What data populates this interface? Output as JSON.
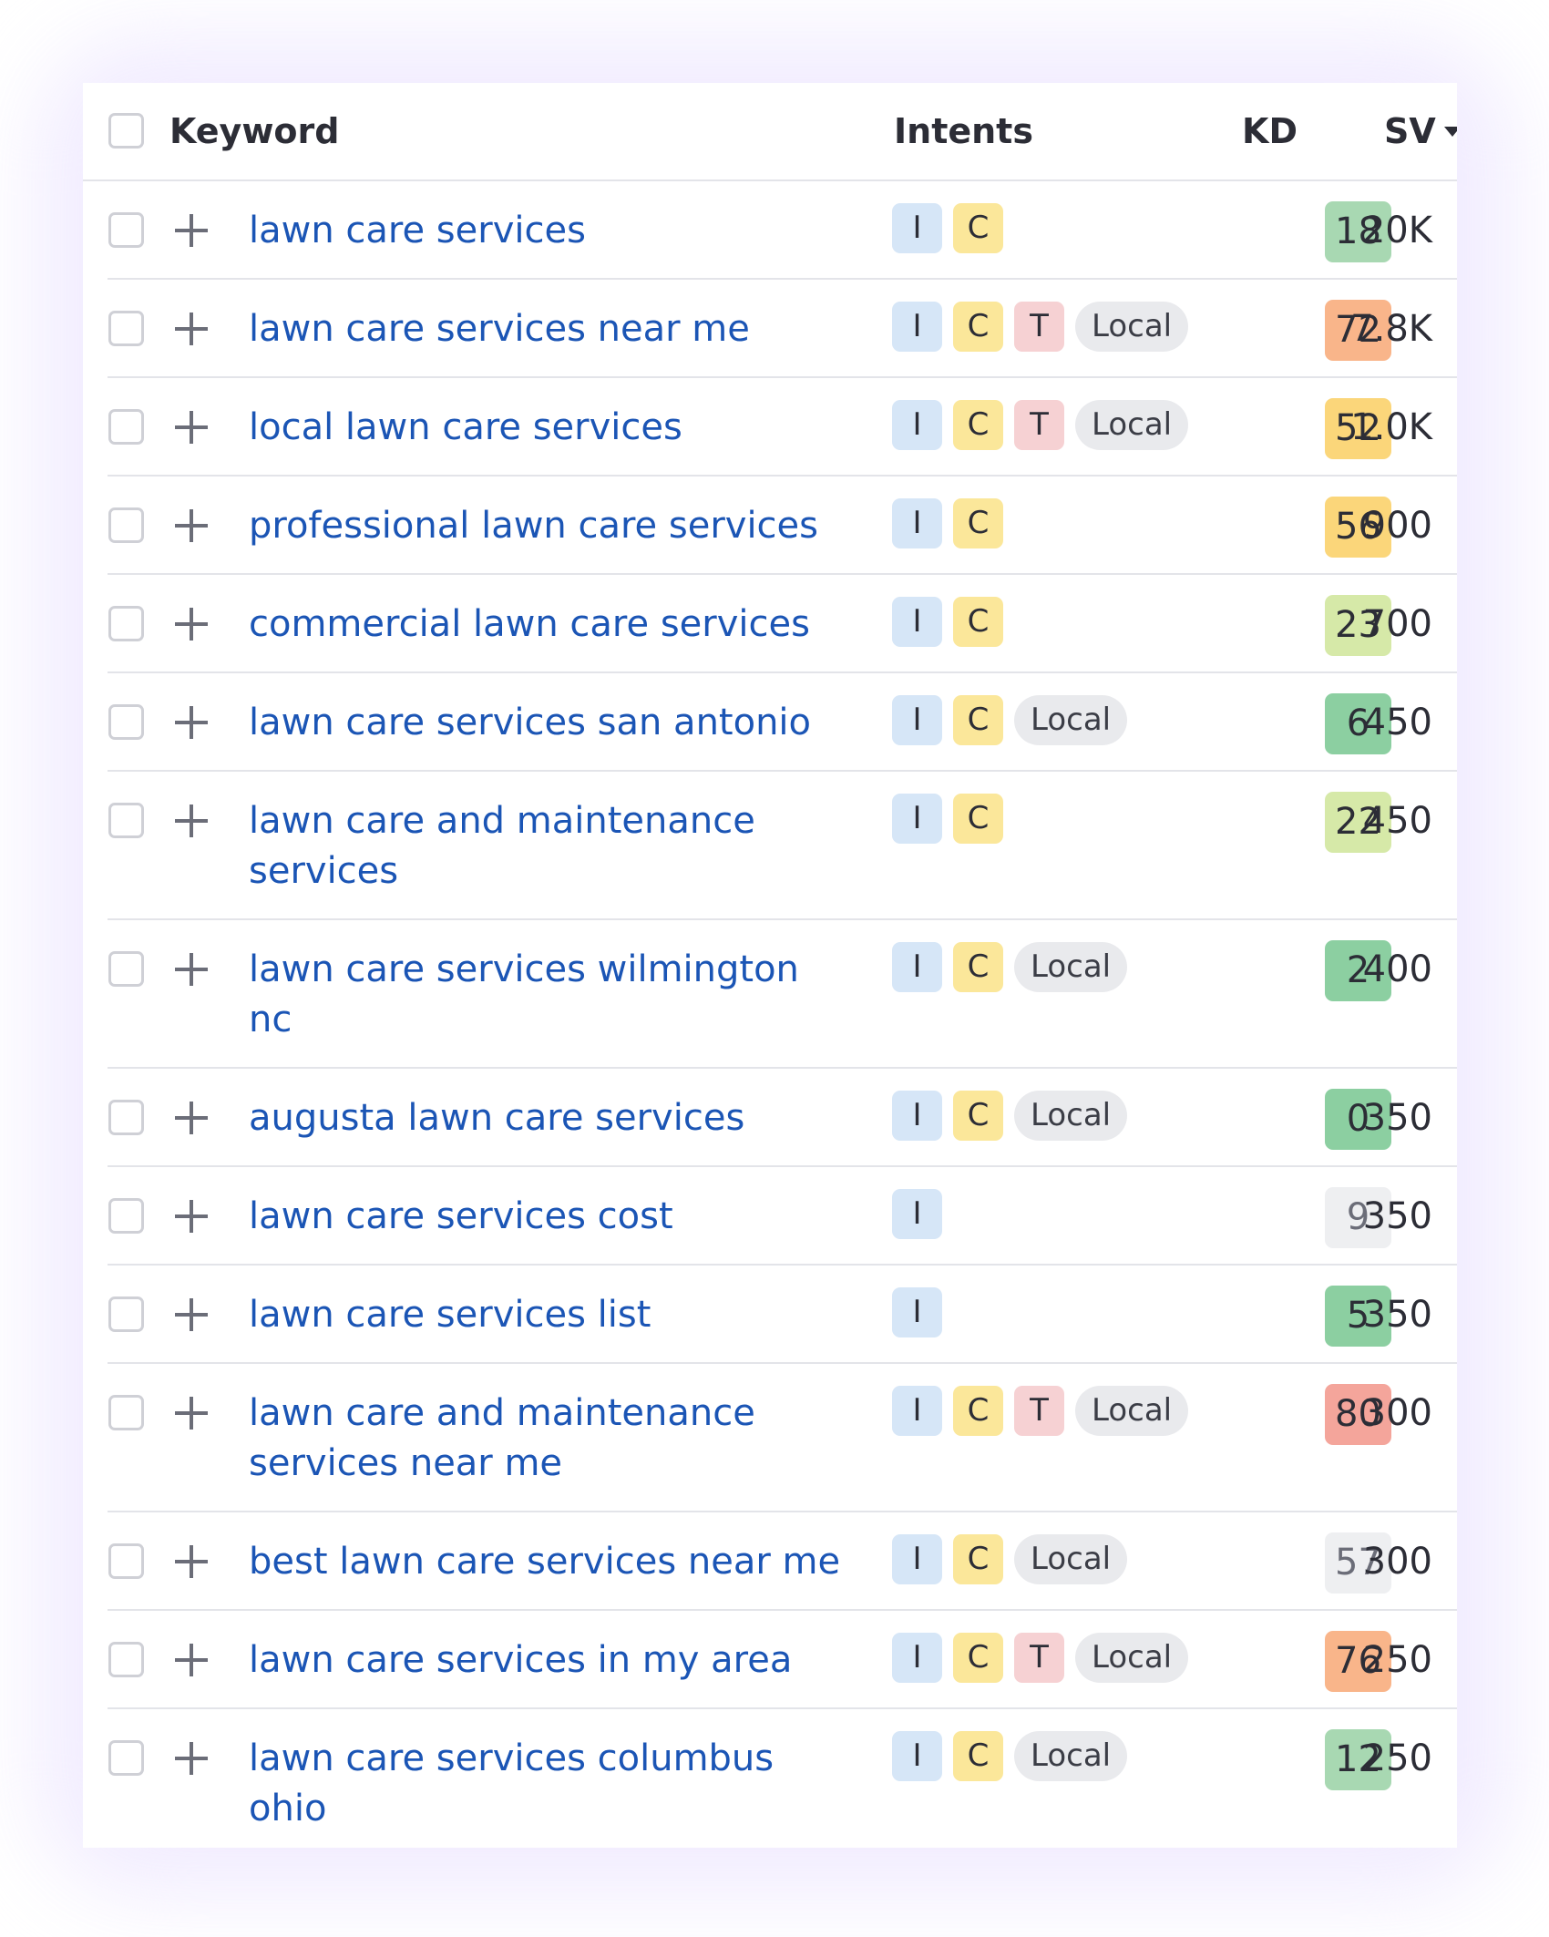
{
  "header": {
    "keyword": "Keyword",
    "intents": "Intents",
    "kd": "KD",
    "sv": "SV"
  },
  "kd_colors": {
    "dark_green": "#9bd3ab",
    "light_green": "#d6e9a8",
    "yellow": "#fbd67a",
    "orange": "#f9b58a",
    "red": "#f4a59b",
    "gray": "#eeeff1"
  },
  "rows": [
    {
      "keyword": "lawn care services",
      "intents": [
        "I",
        "C"
      ],
      "kd": "18",
      "kd_color": "#a8d8b2",
      "sv": "20K"
    },
    {
      "keyword": "lawn care services near me",
      "intents": [
        "I",
        "C",
        "T",
        "Local"
      ],
      "kd": "72",
      "kd_color": "#f9b58a",
      "sv": "7.8K"
    },
    {
      "keyword": "local lawn care services",
      "intents": [
        "I",
        "C",
        "T",
        "Local"
      ],
      "kd": "52",
      "kd_color": "#fbd67a",
      "sv": "1.0K"
    },
    {
      "keyword": "professional lawn care services",
      "intents": [
        "I",
        "C"
      ],
      "kd": "56",
      "kd_color": "#fbd67a",
      "sv": "900"
    },
    {
      "keyword": "commercial lawn care services",
      "intents": [
        "I",
        "C"
      ],
      "kd": "23",
      "kd_color": "#d6e9a8",
      "sv": "700"
    },
    {
      "keyword": "lawn care services san antonio",
      "intents": [
        "I",
        "C",
        "Local"
      ],
      "kd": "6",
      "kd_color": "#8ccfa1",
      "sv": "450"
    },
    {
      "keyword": "lawn care and maintenance services",
      "intents": [
        "I",
        "C"
      ],
      "kd": "22",
      "kd_color": "#d6e9a8",
      "sv": "450"
    },
    {
      "keyword": "lawn care services wilmington nc",
      "intents": [
        "I",
        "C",
        "Local"
      ],
      "kd": "2",
      "kd_color": "#8ccfa1",
      "sv": "400"
    },
    {
      "keyword": "augusta lawn care services",
      "intents": [
        "I",
        "C",
        "Local"
      ],
      "kd": "0",
      "kd_color": "#8ccfa1",
      "sv": "350"
    },
    {
      "keyword": "lawn care services cost",
      "intents": [
        "I"
      ],
      "kd": "9",
      "kd_color": "#eeeff1",
      "sv": "350"
    },
    {
      "keyword": "lawn care services list",
      "intents": [
        "I"
      ],
      "kd": "5",
      "kd_color": "#8ccfa1",
      "sv": "350"
    },
    {
      "keyword": "lawn care and maintenance services near me",
      "intents": [
        "I",
        "C",
        "T",
        "Local"
      ],
      "kd": "80",
      "kd_color": "#f4a59b",
      "sv": "300"
    },
    {
      "keyword": "best lawn care services near me",
      "intents": [
        "I",
        "C",
        "Local"
      ],
      "kd": "57",
      "kd_color": "#eeeff1",
      "sv": "300"
    },
    {
      "keyword": "lawn care services in my area",
      "intents": [
        "I",
        "C",
        "T",
        "Local"
      ],
      "kd": "76",
      "kd_color": "#f9b58a",
      "sv": "250"
    },
    {
      "keyword": "lawn care services columbus ohio",
      "intents": [
        "I",
        "C",
        "Local"
      ],
      "kd": "12",
      "kd_color": "#a8d8b2",
      "sv": "250"
    }
  ]
}
